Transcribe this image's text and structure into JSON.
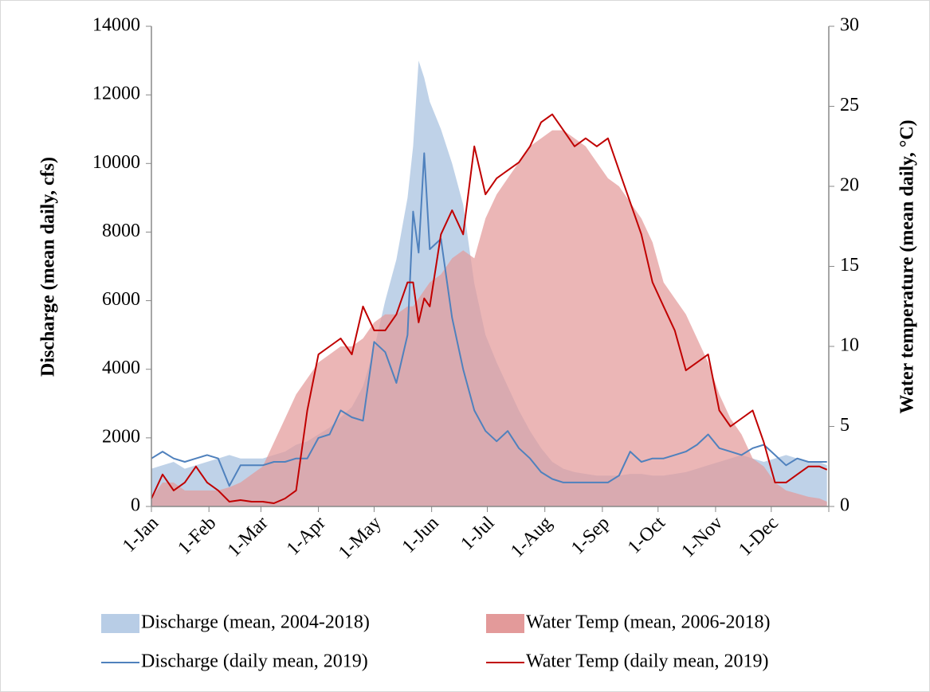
{
  "chart_data": {
    "type": "line",
    "x": [
      1,
      7,
      13,
      19,
      25,
      31,
      37,
      43,
      49,
      55,
      61,
      67,
      73,
      79,
      85,
      91,
      97,
      103,
      109,
      115,
      121,
      127,
      133,
      139,
      142,
      145,
      148,
      151,
      157,
      163,
      169,
      175,
      181,
      187,
      193,
      199,
      205,
      211,
      217,
      223,
      229,
      235,
      241,
      247,
      253,
      259,
      265,
      271,
      277,
      283,
      289,
      295,
      301,
      307,
      313,
      319,
      325,
      331,
      337,
      343,
      349,
      355,
      361,
      365
    ],
    "xlim": [
      1,
      366
    ],
    "xticks": [
      {
        "value": 1,
        "label": "1-Jan"
      },
      {
        "value": 32,
        "label": "1-Feb"
      },
      {
        "value": 60,
        "label": "1-Mar"
      },
      {
        "value": 91,
        "label": "1-Apr"
      },
      {
        "value": 121,
        "label": "1-May"
      },
      {
        "value": 152,
        "label": "1-Jun"
      },
      {
        "value": 182,
        "label": "1-Jul"
      },
      {
        "value": 213,
        "label": "1-Aug"
      },
      {
        "value": 244,
        "label": "1-Sep"
      },
      {
        "value": 274,
        "label": "1-Oct"
      },
      {
        "value": 305,
        "label": "1-Nov"
      },
      {
        "value": 335,
        "label": "1-Dec"
      }
    ],
    "ylabel": "Discharge (mean daily, cfs)",
    "ylim": [
      0,
      14000
    ],
    "yticks": [
      0,
      2000,
      4000,
      6000,
      8000,
      10000,
      12000,
      14000
    ],
    "y2label": "Water temperature (mean daily, °C)",
    "y2lim": [
      0,
      30
    ],
    "y2ticks": [
      0,
      5,
      10,
      15,
      20,
      25,
      30
    ],
    "series": [
      {
        "name": "Discharge (mean, 2004-2018)",
        "style": "area",
        "color": "#b8cde6",
        "axis": "y",
        "values": [
          1100,
          1200,
          1300,
          1100,
          1200,
          1300,
          1400,
          1500,
          1400,
          1400,
          1400,
          1500,
          1600,
          1800,
          1900,
          2100,
          2300,
          2600,
          2900,
          3500,
          4600,
          6000,
          7200,
          9000,
          10500,
          13000,
          12500,
          11800,
          11000,
          10000,
          8800,
          6500,
          5000,
          4200,
          3500,
          2800,
          2200,
          1700,
          1300,
          1100,
          1000,
          950,
          900,
          900,
          900,
          950,
          950,
          900,
          900,
          950,
          1000,
          1100,
          1200,
          1300,
          1400,
          1500,
          1400,
          1300,
          1400,
          1500,
          1400,
          1300,
          1300,
          1200
        ]
      },
      {
        "name": "Water Temp (mean, 2006-2018)",
        "style": "area",
        "color": "#e39a9a",
        "axis": "y2",
        "values": [
          0.5,
          1.5,
          1.5,
          1,
          1,
          1,
          1,
          1.2,
          1.5,
          2,
          2.5,
          4,
          5.5,
          7,
          8,
          9,
          9.5,
          10,
          10,
          10.5,
          11.5,
          12,
          12,
          12.5,
          12.5,
          13,
          13.5,
          14,
          14.5,
          15.5,
          16,
          15.5,
          18,
          19.5,
          20.5,
          21.5,
          22.5,
          23,
          23.5,
          23.5,
          23,
          22.5,
          21.5,
          20.5,
          20,
          19,
          18,
          16.5,
          14,
          13,
          12,
          10.5,
          9,
          7,
          5.5,
          4.5,
          3,
          2.5,
          1.5,
          1,
          0.8,
          0.6,
          0.5,
          0.3
        ]
      },
      {
        "name": "Discharge (daily mean, 2019)",
        "style": "line",
        "color": "#4f81bd",
        "axis": "y",
        "values": [
          1400,
          1600,
          1400,
          1300,
          1400,
          1500,
          1400,
          600,
          1200,
          1200,
          1200,
          1300,
          1300,
          1400,
          1400,
          2000,
          2100,
          2800,
          2600,
          2500,
          4800,
          4500,
          3600,
          5000,
          8600,
          7400,
          10300,
          7500,
          7800,
          5500,
          4000,
          2800,
          2200,
          1900,
          2200,
          1700,
          1400,
          1000,
          800,
          700,
          700,
          700,
          700,
          700,
          900,
          1600,
          1300,
          1400,
          1400,
          1500,
          1600,
          1800,
          2100,
          1700,
          1600,
          1500,
          1700,
          1800,
          1500,
          1200,
          1400,
          1300,
          1300,
          1300
        ]
      },
      {
        "name": "Water Temp (daily mean, 2019)",
        "style": "line",
        "color": "#c00000",
        "axis": "y2",
        "values": [
          0.5,
          2,
          1,
          1.5,
          2.5,
          1.5,
          1,
          0.3,
          0.4,
          0.3,
          0.3,
          0.2,
          0.5,
          1,
          6,
          9.5,
          10,
          10.5,
          9.5,
          12.5,
          11,
          11,
          12,
          14,
          14,
          11.5,
          13,
          12.5,
          17,
          18.5,
          17,
          22.5,
          19.5,
          20.5,
          21,
          21.5,
          22.5,
          24,
          24.5,
          23.5,
          22.5,
          23,
          22.5,
          23,
          21,
          19,
          17,
          14,
          12.5,
          11,
          8.5,
          9,
          9.5,
          6,
          5,
          5.5,
          6,
          4,
          1.5,
          1.5,
          2,
          2.5,
          2.5,
          2.3
        ]
      }
    ]
  }
}
